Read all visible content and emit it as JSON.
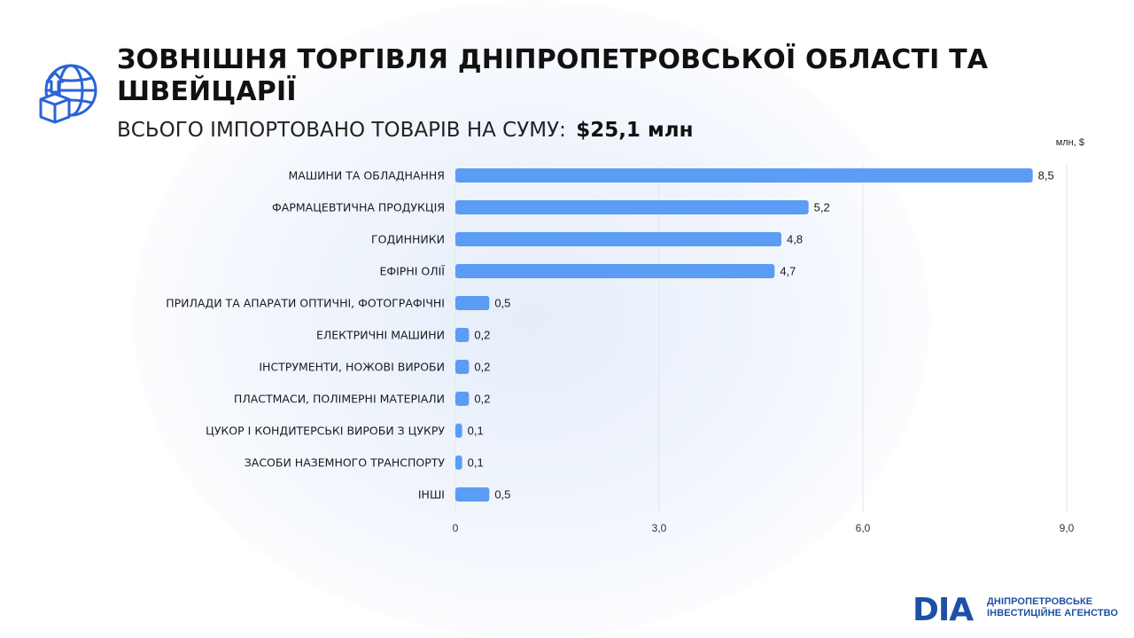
{
  "header": {
    "title": "ЗОВНІШНЯ ТОРГІВЛЯ ДНІПРОПЕТРОВСЬКОЇ ОБЛАСТІ ТА ШВЕЙЦАРІЇ",
    "subtitle_prefix": "ВСЬОГО ІМПОРТОВАНО ТОВАРІВ НА СУМУ:",
    "subtitle_total": "$25,1 млн"
  },
  "brand": {
    "mark": "DIA",
    "line1": "ДНІПРОПЕТРОВСЬКЕ",
    "line2": "ІНВЕСТИЦІЙНЕ АГЕНСТВО",
    "color": "#1f4fa6"
  },
  "icons": {
    "header_icon": "globe-box-import-icon"
  },
  "colors": {
    "bar": "#5b9cf5",
    "grid": "#e3e6ec",
    "accent": "#2a64d6"
  },
  "chart_data": {
    "type": "bar",
    "orientation": "horizontal",
    "units_label": "млн, $",
    "categories": [
      "МАШИНИ ТА ОБЛАДНАННЯ",
      "ФАРМАЦЕВТИЧНА ПРОДУКЦІЯ",
      "ГОДИННИКИ",
      "ЕФІРНІ ОЛІЇ",
      "ПРИЛАДИ ТА АПАРАТИ ОПТИЧНІ, ФОТОГРАФІЧНІ",
      "ЕЛЕКТРИЧНІ МАШИНИ",
      "ІНСТРУМЕНТИ, НОЖОВІ ВИРОБИ",
      "ПЛАСТМАСИ, ПОЛІМЕРНІ МАТЕРІАЛИ",
      "ЦУКОР І КОНДИТЕРСЬКІ ВИРОБИ З ЦУКРУ",
      "ЗАСОБИ НАЗЕМНОГО ТРАНСПОРТУ",
      "ІНШІ"
    ],
    "values": [
      8.5,
      5.2,
      4.8,
      4.7,
      0.5,
      0.2,
      0.2,
      0.2,
      0.1,
      0.1,
      0.5
    ],
    "value_labels": [
      "8,5",
      "5,2",
      "4,8",
      "4,7",
      "0,5",
      "0,2",
      "0,2",
      "0,2",
      "0,1",
      "0,1",
      "0,5"
    ],
    "xlim": [
      0,
      9
    ],
    "xticks": [
      0,
      3,
      6,
      9
    ],
    "xtick_labels": [
      "0",
      "3,0",
      "6,0",
      "9,0"
    ],
    "grid": true,
    "legend": "none"
  }
}
